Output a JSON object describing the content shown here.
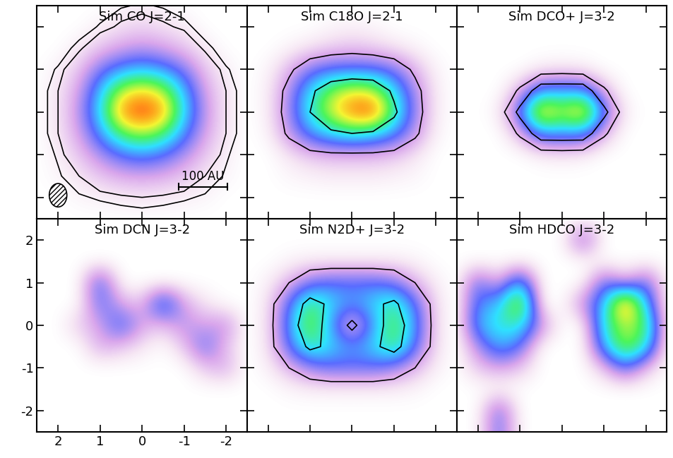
{
  "chart_data": [
    {
      "type": "heatmap",
      "title": "Sim CO J=2-1",
      "tick_labels": false,
      "xlim": [
        2.5,
        -2.5
      ],
      "ylim": [
        -2.5,
        2.5
      ],
      "xticks": [
        2,
        1,
        0,
        -1,
        -2
      ],
      "yticks": [
        2,
        1,
        0,
        -1,
        -2
      ],
      "x": [
        2.5,
        2.0,
        1.5,
        1.0,
        0.5,
        0.0,
        -0.5,
        -1.0,
        -1.5,
        -2.0,
        -2.5
      ],
      "y": [
        2.5,
        2.0,
        1.5,
        1.0,
        0.5,
        0.0,
        -0.5,
        -1.0,
        -1.5,
        -2.0,
        -2.5
      ],
      "color_range": [
        0,
        1
      ],
      "contour_levels": [
        0.025,
        0.05
      ],
      "beam": {
        "major": 0.55,
        "minor": 0.42
      },
      "scale_bar": {
        "label": "100 AU",
        "length": 1.15
      },
      "cells": [
        [
          0,
          0,
          0,
          0,
          0.02,
          0.03,
          0.02,
          0,
          0,
          0,
          0
        ],
        [
          0,
          0,
          0,
          0.03,
          0.06,
          0.08,
          0.06,
          0.04,
          0,
          0,
          0
        ],
        [
          0,
          0,
          0.04,
          0.1,
          0.15,
          0.18,
          0.15,
          0.1,
          0.04,
          0,
          0
        ],
        [
          0,
          0.03,
          0.1,
          0.25,
          0.35,
          0.4,
          0.35,
          0.25,
          0.1,
          0.03,
          0
        ],
        [
          0,
          0.05,
          0.15,
          0.4,
          0.7,
          0.8,
          0.7,
          0.4,
          0.15,
          0.05,
          0
        ],
        [
          0,
          0.05,
          0.18,
          0.45,
          0.9,
          1.0,
          0.9,
          0.45,
          0.18,
          0.05,
          0
        ],
        [
          0,
          0.05,
          0.15,
          0.35,
          0.6,
          0.7,
          0.6,
          0.35,
          0.15,
          0.05,
          0
        ],
        [
          0,
          0.03,
          0.1,
          0.2,
          0.3,
          0.35,
          0.3,
          0.2,
          0.1,
          0.03,
          0
        ],
        [
          0,
          0.02,
          0.05,
          0.1,
          0.14,
          0.15,
          0.14,
          0.1,
          0.05,
          0.02,
          0
        ],
        [
          0,
          0,
          0.02,
          0.03,
          0.04,
          0.05,
          0.04,
          0.03,
          0.02,
          0,
          0
        ],
        [
          0,
          0,
          0,
          0,
          0,
          0,
          0,
          0,
          0,
          0,
          0
        ]
      ]
    },
    {
      "type": "heatmap",
      "title": "Sim C18O J=2-1",
      "tick_labels": false,
      "xlim": [
        2.5,
        -2.5
      ],
      "ylim": [
        -2.5,
        2.5
      ],
      "xticks": [
        2,
        1,
        0,
        -1,
        -2
      ],
      "yticks": [
        2,
        1,
        0,
        -1,
        -2
      ],
      "x": [
        2.5,
        2.0,
        1.5,
        1.0,
        0.5,
        0.0,
        -0.5,
        -1.0,
        -1.5,
        -2.0,
        -2.5
      ],
      "y": [
        2.5,
        2.0,
        1.5,
        1.0,
        0.5,
        0.0,
        -0.5,
        -1.0,
        -1.5,
        -2.0,
        -2.5
      ],
      "color_range": [
        0,
        1
      ],
      "contour_levels": [
        0.15,
        0.5
      ],
      "cells": [
        [
          0,
          0,
          0,
          0,
          0,
          0,
          0,
          0,
          0,
          0,
          0
        ],
        [
          0,
          0,
          0,
          0,
          0.02,
          0.03,
          0.02,
          0,
          0,
          0,
          0
        ],
        [
          0,
          0,
          0.02,
          0.05,
          0.08,
          0.1,
          0.08,
          0.05,
          0.02,
          0,
          0
        ],
        [
          0,
          0.02,
          0.12,
          0.25,
          0.3,
          0.3,
          0.3,
          0.25,
          0.12,
          0.02,
          0
        ],
        [
          0,
          0.03,
          0.2,
          0.45,
          0.65,
          0.75,
          0.7,
          0.45,
          0.2,
          0.03,
          0
        ],
        [
          0,
          0.03,
          0.22,
          0.5,
          0.75,
          0.95,
          1.0,
          0.55,
          0.22,
          0.03,
          0
        ],
        [
          0,
          0.02,
          0.18,
          0.35,
          0.45,
          0.5,
          0.45,
          0.35,
          0.18,
          0.02,
          0
        ],
        [
          0,
          0,
          0.05,
          0.1,
          0.12,
          0.12,
          0.12,
          0.1,
          0.05,
          0,
          0
        ],
        [
          0,
          0,
          0.02,
          0.03,
          0.04,
          0.04,
          0.04,
          0.03,
          0.02,
          0,
          0
        ],
        [
          0,
          0,
          0,
          0,
          0,
          0,
          0,
          0,
          0,
          0,
          0
        ],
        [
          0,
          0,
          0,
          0,
          0,
          0,
          0,
          0,
          0,
          0,
          0
        ]
      ]
    },
    {
      "type": "heatmap",
      "title": "Sim DCO+ J=3-2",
      "tick_labels": false,
      "xlim": [
        2.5,
        -2.5
      ],
      "ylim": [
        -2.5,
        2.5
      ],
      "xticks": [
        2,
        1,
        0,
        -1,
        -2
      ],
      "yticks": [
        2,
        1,
        0,
        -1,
        -2
      ],
      "x": [
        2.5,
        2.0,
        1.5,
        1.0,
        0.5,
        0.0,
        -0.5,
        -1.0,
        -1.5,
        -2.0,
        -2.5
      ],
      "y": [
        2.5,
        2.0,
        1.5,
        1.0,
        0.5,
        0.0,
        -0.5,
        -1.0,
        -1.5,
        -2.0,
        -2.5
      ],
      "color_range": [
        0,
        1
      ],
      "contour_levels": [
        0.1,
        0.25
      ],
      "cells": [
        [
          0,
          0,
          0,
          0,
          0,
          0,
          0,
          0,
          0,
          0,
          0
        ],
        [
          0,
          0,
          0,
          0,
          0,
          0,
          0,
          0,
          0,
          0,
          0
        ],
        [
          0,
          0,
          0,
          0,
          0,
          0,
          0,
          0,
          0,
          0,
          0
        ],
        [
          0,
          0,
          0,
          0,
          0.03,
          0.04,
          0.03,
          0,
          0,
          0,
          0
        ],
        [
          0,
          0,
          0,
          0.12,
          0.35,
          0.35,
          0.35,
          0.12,
          0,
          0,
          0
        ],
        [
          0,
          0,
          0.03,
          0.3,
          0.9,
          0.7,
          0.9,
          0.3,
          0.03,
          0,
          0
        ],
        [
          0,
          0,
          0,
          0.12,
          0.35,
          0.35,
          0.35,
          0.12,
          0,
          0,
          0
        ],
        [
          0,
          0,
          0,
          0,
          0.03,
          0.04,
          0.03,
          0,
          0,
          0,
          0
        ],
        [
          0,
          0,
          0,
          0,
          0,
          0,
          0,
          0,
          0,
          0,
          0
        ],
        [
          0,
          0,
          0,
          0,
          0,
          0,
          0,
          0,
          0,
          0,
          0
        ],
        [
          0,
          0,
          0,
          0,
          0,
          0,
          0,
          0,
          0,
          0,
          0
        ]
      ]
    },
    {
      "type": "heatmap",
      "title": "Sim DCN J=3-2",
      "tick_labels": true,
      "xlim": [
        2.5,
        -2.5
      ],
      "ylim": [
        -2.5,
        2.5
      ],
      "xticks": [
        2,
        1,
        0,
        -1,
        -2
      ],
      "yticks": [
        2,
        1,
        0,
        -1,
        -2
      ],
      "x": [
        2.5,
        2.0,
        1.5,
        1.0,
        0.5,
        0.0,
        -0.5,
        -1.0,
        -1.5,
        -2.0,
        -2.5
      ],
      "y": [
        2.5,
        2.0,
        1.5,
        1.0,
        0.5,
        0.0,
        -0.5,
        -1.0,
        -1.5,
        -2.0,
        -2.5
      ],
      "color_range": [
        0,
        1
      ],
      "contour_levels": [],
      "cells": [
        [
          0,
          0,
          0,
          0,
          0,
          0,
          0,
          0,
          0,
          0,
          0
        ],
        [
          0,
          0,
          0,
          0,
          0,
          0,
          0,
          0,
          0,
          0,
          0
        ],
        [
          0,
          0,
          0,
          0,
          0,
          0,
          0,
          0,
          0,
          0,
          0
        ],
        [
          0,
          0,
          0,
          0.35,
          0,
          0,
          0,
          0,
          0,
          0,
          0
        ],
        [
          0,
          0,
          0,
          0.3,
          0.15,
          0.1,
          0.45,
          0.15,
          0.05,
          0,
          0
        ],
        [
          0,
          0,
          0.1,
          0.15,
          0.35,
          0.15,
          0.1,
          0.2,
          0.15,
          0.2,
          0
        ],
        [
          0,
          0,
          0,
          0.15,
          0.1,
          0.05,
          0,
          0.1,
          0.3,
          0.1,
          0
        ],
        [
          0,
          0,
          0,
          0,
          0,
          0,
          0,
          0,
          0.1,
          0.15,
          0
        ],
        [
          0,
          0,
          0,
          0,
          0,
          0,
          0,
          0,
          0,
          0,
          0
        ],
        [
          0,
          0,
          0,
          0,
          0,
          0,
          0,
          0,
          0,
          0,
          0
        ],
        [
          0,
          0,
          0,
          0,
          0,
          0,
          0,
          0,
          0,
          0,
          0
        ]
      ]
    },
    {
      "type": "heatmap",
      "title": "Sim N2D+ J=3-2",
      "tick_labels": false,
      "xlim": [
        2.5,
        -2.5
      ],
      "ylim": [
        -2.5,
        2.5
      ],
      "xticks": [
        2,
        1,
        0,
        -1,
        -2
      ],
      "yticks": [
        2,
        1,
        0,
        -1,
        -2
      ],
      "x": [
        2.5,
        2.0,
        1.5,
        1.0,
        0.5,
        0.0,
        -0.5,
        -1.0,
        -1.5,
        -2.0,
        -2.5
      ],
      "y": [
        2.5,
        2.0,
        1.5,
        1.0,
        0.5,
        0.0,
        -0.5,
        -1.0,
        -1.5,
        -2.0,
        -2.5
      ],
      "color_range": [
        0,
        1
      ],
      "contour_levels": [
        0.12,
        0.5
      ],
      "cells": [
        [
          0,
          0,
          0,
          0,
          0,
          0,
          0,
          0,
          0,
          0,
          0
        ],
        [
          0,
          0,
          0,
          0,
          0,
          0,
          0,
          0,
          0,
          0,
          0
        ],
        [
          0,
          0,
          0.02,
          0.03,
          0.03,
          0.03,
          0.03,
          0.03,
          0.02,
          0,
          0
        ],
        [
          0,
          0.03,
          0.12,
          0.25,
          0.3,
          0.3,
          0.3,
          0.25,
          0.12,
          0.03,
          0
        ],
        [
          0,
          0.05,
          0.3,
          0.6,
          0.45,
          0.35,
          0.45,
          0.55,
          0.3,
          0.05,
          0
        ],
        [
          0,
          0.05,
          0.35,
          0.7,
          0.35,
          0.05,
          0.35,
          0.65,
          0.35,
          0.05,
          0
        ],
        [
          0,
          0.05,
          0.3,
          0.55,
          0.45,
          0.35,
          0.45,
          0.6,
          0.3,
          0.05,
          0
        ],
        [
          0,
          0.03,
          0.12,
          0.22,
          0.28,
          0.28,
          0.28,
          0.22,
          0.12,
          0.03,
          0
        ],
        [
          0,
          0,
          0.02,
          0.03,
          0.03,
          0.03,
          0.03,
          0.03,
          0.02,
          0,
          0
        ],
        [
          0,
          0,
          0,
          0,
          0,
          0,
          0,
          0,
          0,
          0,
          0
        ],
        [
          0,
          0,
          0,
          0,
          0,
          0,
          0,
          0,
          0,
          0,
          0
        ]
      ]
    },
    {
      "type": "heatmap",
      "title": "Sim HDCO J=3-2",
      "tick_labels": false,
      "xlim": [
        2.5,
        -2.5
      ],
      "ylim": [
        -2.5,
        2.5
      ],
      "xticks": [
        2,
        1,
        0,
        -1,
        -2
      ],
      "yticks": [
        2,
        1,
        0,
        -1,
        -2
      ],
      "x": [
        2.5,
        2.0,
        1.5,
        1.0,
        0.5,
        0.0,
        -0.5,
        -1.0,
        -1.5,
        -2.0,
        -2.5
      ],
      "y": [
        2.5,
        2.0,
        1.5,
        1.0,
        0.5,
        0.0,
        -0.5,
        -1.0,
        -1.5,
        -2.0,
        -2.5
      ],
      "color_range": [
        0,
        1
      ],
      "contour_levels": [],
      "cells": [
        [
          0,
          0,
          0,
          0,
          0,
          0,
          0,
          0,
          0,
          0,
          0
        ],
        [
          0,
          0,
          0,
          0,
          0,
          0,
          0.3,
          0,
          0,
          0,
          0
        ],
        [
          0,
          0,
          0,
          0,
          0,
          0,
          0,
          0,
          0,
          0,
          0
        ],
        [
          0,
          0.3,
          0.1,
          0.45,
          0,
          0,
          0,
          0.3,
          0.1,
          0.3,
          0
        ],
        [
          0,
          0.35,
          0.4,
          0.8,
          0,
          0,
          0.2,
          0.4,
          1.0,
          0.4,
          0
        ],
        [
          0,
          0.4,
          0.5,
          0.5,
          0.2,
          0,
          0,
          0.5,
          0.7,
          0.6,
          0
        ],
        [
          0,
          0.2,
          0.4,
          0.3,
          0,
          0,
          0,
          0.4,
          0.7,
          0.5,
          0
        ],
        [
          0,
          0.1,
          0.15,
          0.1,
          0,
          0,
          0,
          0.1,
          0.3,
          0.1,
          0
        ],
        [
          0,
          0,
          0,
          0,
          0,
          0,
          0,
          0,
          0,
          0,
          0
        ],
        [
          0,
          0,
          0.3,
          0,
          0,
          0,
          0,
          0,
          0,
          0,
          0
        ],
        [
          0,
          0,
          0.3,
          0,
          0,
          0,
          0,
          0,
          0,
          0,
          0
        ]
      ]
    }
  ]
}
